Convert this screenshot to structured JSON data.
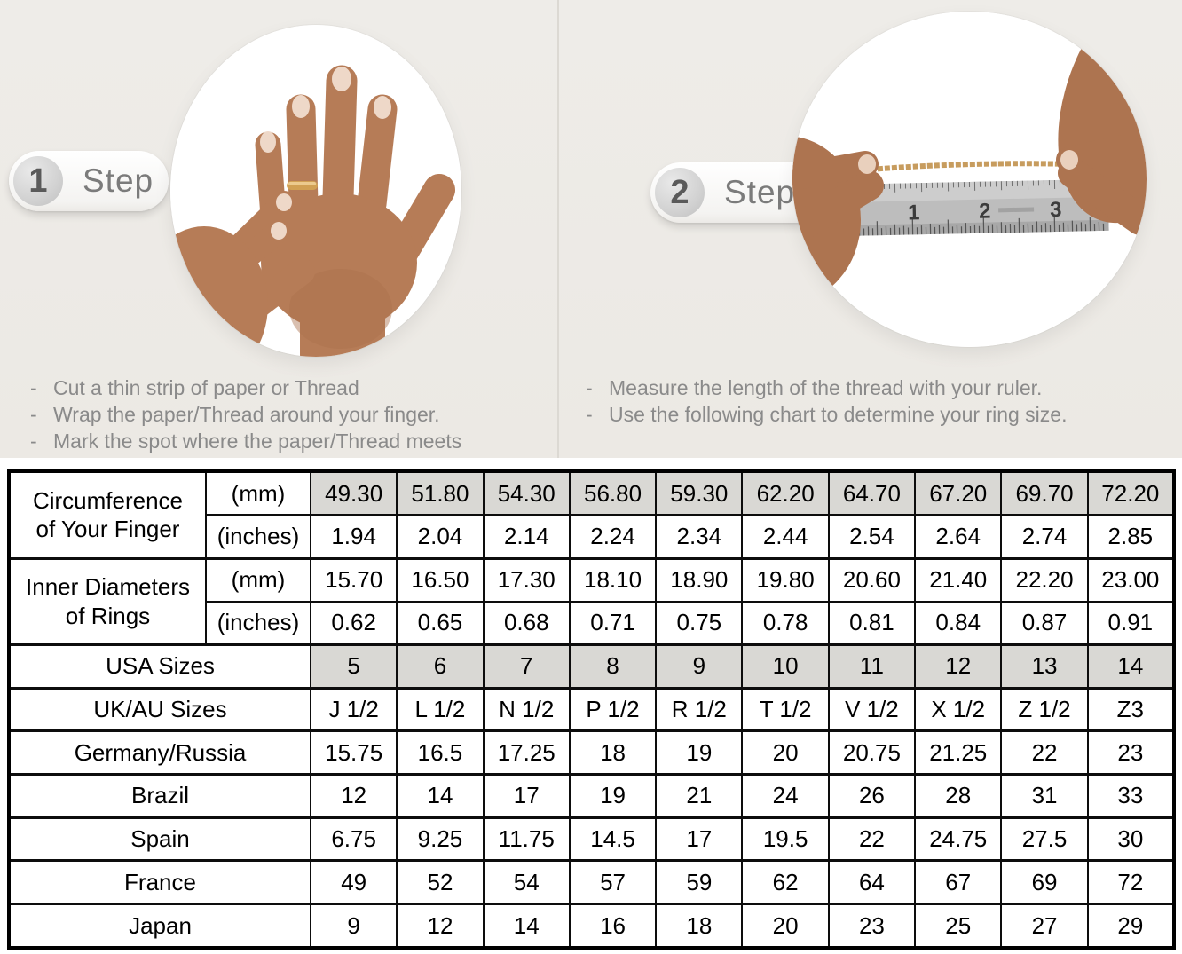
{
  "colors": {
    "top_background": "#edebe7",
    "table_shaded_cell": "#d9d8d4",
    "bullet_text": "#8a8a8a",
    "step_text": "#7b7b7b",
    "table_border": "#000000",
    "skin_tone": "#b67c57",
    "gold": "#d1a054",
    "ruler_metal": "#bdbdbd"
  },
  "steps": [
    {
      "number": "1",
      "label": "Step",
      "photo": "hand-with-ring-photo",
      "bullets": [
        "Cut a thin strip of paper or Thread",
        "Wrap the paper/Thread around your finger.",
        "Mark the spot where the paper/Thread meets"
      ]
    },
    {
      "number": "2",
      "label": "Step",
      "photo": "measuring-thread-with-ruler-photo",
      "bullets": [
        "Measure the length of the thread with your ruler.",
        "Use the following chart to determine your ring size."
      ]
    }
  ],
  "ruler": {
    "numbers": [
      "1",
      "2",
      "3"
    ]
  },
  "size_chart": {
    "column_count": 10,
    "sections": [
      {
        "kind": "group",
        "label_lines": [
          "Circumference",
          "of Your Finger"
        ],
        "subrows": [
          {
            "unit": "(mm)",
            "shaded": true,
            "values": [
              "49.30",
              "51.80",
              "54.30",
              "56.80",
              "59.30",
              "62.20",
              "64.70",
              "67.20",
              "69.70",
              "72.20"
            ]
          },
          {
            "unit": "(inches)",
            "shaded": false,
            "values": [
              "1.94",
              "2.04",
              "2.14",
              "2.24",
              "2.34",
              "2.44",
              "2.54",
              "2.64",
              "2.74",
              "2.85"
            ]
          }
        ]
      },
      {
        "kind": "group",
        "label_lines": [
          "Inner Diameters",
          "of Rings"
        ],
        "subrows": [
          {
            "unit": "(mm)",
            "shaded": false,
            "values": [
              "15.70",
              "16.50",
              "17.30",
              "18.10",
              "18.90",
              "19.80",
              "20.60",
              "21.40",
              "22.20",
              "23.00"
            ]
          },
          {
            "unit": "(inches)",
            "shaded": false,
            "values": [
              "0.62",
              "0.65",
              "0.68",
              "0.71",
              "0.75",
              "0.78",
              "0.81",
              "0.84",
              "0.87",
              "0.91"
            ]
          }
        ]
      },
      {
        "kind": "row",
        "label": "USA Sizes",
        "shaded": true,
        "values": [
          "5",
          "6",
          "7",
          "8",
          "9",
          "10",
          "11",
          "12",
          "13",
          "14"
        ]
      },
      {
        "kind": "row",
        "label": "UK/AU Sizes",
        "shaded": false,
        "values": [
          "J 1/2",
          "L 1/2",
          "N 1/2",
          "P 1/2",
          "R 1/2",
          "T 1/2",
          "V 1/2",
          "X 1/2",
          "Z 1/2",
          "Z3"
        ]
      },
      {
        "kind": "row",
        "label": "Germany/Russia",
        "shaded": false,
        "values": [
          "15.75",
          "16.5",
          "17.25",
          "18",
          "19",
          "20",
          "20.75",
          "21.25",
          "22",
          "23"
        ]
      },
      {
        "kind": "row",
        "label": "Brazil",
        "shaded": false,
        "values": [
          "12",
          "14",
          "17",
          "19",
          "21",
          "24",
          "26",
          "28",
          "31",
          "33"
        ]
      },
      {
        "kind": "row",
        "label": "Spain",
        "shaded": false,
        "values": [
          "6.75",
          "9.25",
          "11.75",
          "14.5",
          "17",
          "19.5",
          "22",
          "24.75",
          "27.5",
          "30"
        ]
      },
      {
        "kind": "row",
        "label": "France",
        "shaded": false,
        "values": [
          "49",
          "52",
          "54",
          "57",
          "59",
          "62",
          "64",
          "67",
          "69",
          "72"
        ]
      },
      {
        "kind": "row",
        "label": "Japan",
        "shaded": false,
        "values": [
          "9",
          "12",
          "14",
          "16",
          "18",
          "20",
          "23",
          "25",
          "27",
          "29"
        ]
      }
    ]
  }
}
